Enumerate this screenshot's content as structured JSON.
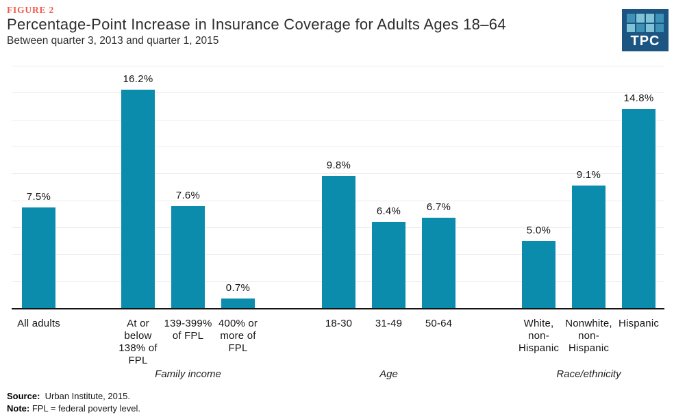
{
  "header": {
    "figure_label": "FIGURE 2",
    "title": "Percentage-Point Increase in Insurance Coverage for Adults Ages 18–64",
    "subtitle": "Between quarter 3, 2013 and quarter 1, 2015",
    "logo_text": "TPC"
  },
  "colors": {
    "bar": "#0b8cad",
    "figure_label": "#ef5948",
    "gridline": "#ececec",
    "axis": "#141414",
    "logo_navy": "#1d5582",
    "logo_square_light": "#7fc3d6",
    "logo_square_mid": "#3e92b5"
  },
  "logo_squares": [
    "mid",
    "light",
    "light",
    "mid",
    "light",
    "mid",
    "light",
    "mid"
  ],
  "chart_data": {
    "type": "bar",
    "title": "Percentage-Point Increase in Insurance Coverage for Adults Ages 18–64",
    "subtitle": "Between quarter 3, 2013 and quarter 1, 2015",
    "unit": "percentage points",
    "ylim": [
      0,
      18
    ],
    "gridline_interval": 2,
    "grid": true,
    "legend": false,
    "groups": [
      {
        "name": "",
        "bars": [
          {
            "category": "All adults",
            "value": 7.5,
            "value_label": "7.5%"
          }
        ]
      },
      {
        "name": "Family income",
        "bars": [
          {
            "category": "At or\nbelow\n138% of\nFPL",
            "value": 16.2,
            "value_label": "16.2%"
          },
          {
            "category": "139-399%\nof FPL",
            "value": 7.6,
            "value_label": "7.6%"
          },
          {
            "category": "400% or\nmore of\nFPL",
            "value": 0.7,
            "value_label": "0.7%"
          }
        ]
      },
      {
        "name": "Age",
        "bars": [
          {
            "category": "18-30",
            "value": 9.8,
            "value_label": "9.8%"
          },
          {
            "category": "31-49",
            "value": 6.4,
            "value_label": "6.4%"
          },
          {
            "category": "50-64",
            "value": 6.7,
            "value_label": "6.7%"
          }
        ]
      },
      {
        "name": "Race/ethnicity",
        "bars": [
          {
            "category": "White,\nnon-\nHispanic",
            "value": 5.0,
            "value_label": "5.0%"
          },
          {
            "category": "Nonwhite,\nnon-\nHispanic",
            "value": 9.1,
            "value_label": "9.1%"
          },
          {
            "category": "Hispanic",
            "value": 14.8,
            "value_label": "14.8%"
          }
        ]
      }
    ]
  },
  "footer": {
    "source_label": "Source:",
    "source_text": "Urban Institute, 2015.",
    "note_label": "Note:",
    "note_text": "FPL = federal poverty level."
  }
}
